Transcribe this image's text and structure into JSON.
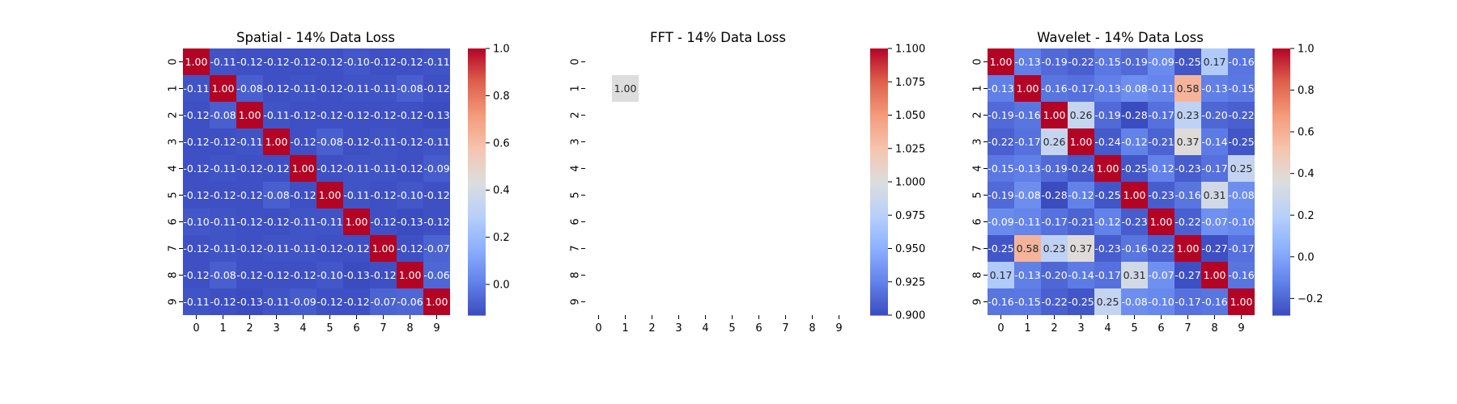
{
  "chart_data": [
    {
      "type": "heatmap",
      "title": "Spatial - 14% Data Loss",
      "x_tick_labels": [
        "0",
        "1",
        "2",
        "3",
        "4",
        "5",
        "6",
        "7",
        "8",
        "9"
      ],
      "y_tick_labels": [
        "0",
        "1",
        "2",
        "3",
        "4",
        "5",
        "6",
        "7",
        "8",
        "9"
      ],
      "colormap": "coolwarm",
      "vmin": -0.13,
      "vmax": 1.0,
      "colorbar_ticks": [
        0.0,
        0.2,
        0.4,
        0.6,
        0.8,
        1.0
      ],
      "colorbar_tick_labels": [
        "0.0",
        "0.2",
        "0.4",
        "0.6",
        "0.8",
        "1.0"
      ],
      "values": [
        [
          1.0,
          -0.11,
          -0.12,
          -0.12,
          -0.12,
          -0.12,
          -0.1,
          -0.12,
          -0.12,
          -0.11
        ],
        [
          -0.11,
          1.0,
          -0.08,
          -0.12,
          -0.11,
          -0.12,
          -0.11,
          -0.11,
          -0.08,
          -0.12
        ],
        [
          -0.12,
          -0.08,
          1.0,
          -0.11,
          -0.12,
          -0.12,
          -0.12,
          -0.12,
          -0.12,
          -0.13
        ],
        [
          -0.12,
          -0.12,
          -0.11,
          1.0,
          -0.12,
          -0.08,
          -0.12,
          -0.11,
          -0.12,
          -0.11
        ],
        [
          -0.12,
          -0.11,
          -0.12,
          -0.12,
          1.0,
          -0.12,
          -0.11,
          -0.11,
          -0.12,
          -0.09
        ],
        [
          -0.12,
          -0.12,
          -0.12,
          -0.08,
          -0.12,
          1.0,
          -0.11,
          -0.12,
          -0.1,
          -0.12
        ],
        [
          -0.1,
          -0.11,
          -0.12,
          -0.12,
          -0.11,
          -0.11,
          1.0,
          -0.12,
          -0.13,
          -0.12
        ],
        [
          -0.12,
          -0.11,
          -0.12,
          -0.11,
          -0.11,
          -0.12,
          -0.12,
          1.0,
          -0.12,
          -0.07
        ],
        [
          -0.12,
          -0.08,
          -0.12,
          -0.12,
          -0.12,
          -0.1,
          -0.13,
          -0.12,
          1.0,
          -0.06
        ],
        [
          -0.11,
          -0.12,
          -0.13,
          -0.11,
          -0.09,
          -0.12,
          -0.12,
          -0.07,
          -0.06,
          1.0
        ]
      ]
    },
    {
      "type": "heatmap",
      "title": "FFT - 14% Data Loss",
      "x_tick_labels": [
        "0",
        "1",
        "2",
        "3",
        "4",
        "5",
        "6",
        "7",
        "8",
        "9"
      ],
      "y_tick_labels": [
        "0",
        "1",
        "2",
        "3",
        "4",
        "5",
        "6",
        "7",
        "8",
        "9"
      ],
      "colormap": "coolwarm",
      "vmin": 0.9,
      "vmax": 1.1,
      "colorbar_ticks": [
        0.9,
        0.925,
        0.95,
        0.975,
        1.0,
        1.025,
        1.05,
        1.075,
        1.1
      ],
      "colorbar_tick_labels": [
        "0.900",
        "0.925",
        "0.950",
        "0.975",
        "1.000",
        "1.025",
        "1.050",
        "1.075",
        "1.100"
      ],
      "values": [
        [
          null,
          null,
          null,
          null,
          null,
          null,
          null,
          null,
          null,
          null
        ],
        [
          null,
          1.0,
          null,
          null,
          null,
          null,
          null,
          null,
          null,
          null
        ],
        [
          null,
          null,
          null,
          null,
          null,
          null,
          null,
          null,
          null,
          null
        ],
        [
          null,
          null,
          null,
          null,
          null,
          null,
          null,
          null,
          null,
          null
        ],
        [
          null,
          null,
          null,
          null,
          null,
          null,
          null,
          null,
          null,
          null
        ],
        [
          null,
          null,
          null,
          null,
          null,
          null,
          null,
          null,
          null,
          null
        ],
        [
          null,
          null,
          null,
          null,
          null,
          null,
          null,
          null,
          null,
          null
        ],
        [
          null,
          null,
          null,
          null,
          null,
          null,
          null,
          null,
          null,
          null
        ],
        [
          null,
          null,
          null,
          null,
          null,
          null,
          null,
          null,
          null,
          null
        ],
        [
          null,
          null,
          null,
          null,
          null,
          null,
          null,
          null,
          null,
          null
        ]
      ]
    },
    {
      "type": "heatmap",
      "title": "Wavelet - 14% Data Loss",
      "x_tick_labels": [
        "0",
        "1",
        "2",
        "3",
        "4",
        "5",
        "6",
        "7",
        "8",
        "9"
      ],
      "y_tick_labels": [
        "0",
        "1",
        "2",
        "3",
        "4",
        "5",
        "6",
        "7",
        "8",
        "9"
      ],
      "colormap": "coolwarm",
      "vmin": -0.28,
      "vmax": 1.0,
      "colorbar_ticks": [
        -0.2,
        0.0,
        0.2,
        0.4,
        0.6,
        0.8,
        1.0
      ],
      "colorbar_tick_labels": [
        "−0.2",
        "0.0",
        "0.2",
        "0.4",
        "0.6",
        "0.8",
        "1.0"
      ],
      "values": [
        [
          1.0,
          -0.13,
          -0.19,
          -0.22,
          -0.15,
          -0.19,
          -0.09,
          -0.25,
          0.17,
          -0.16
        ],
        [
          -0.13,
          1.0,
          -0.16,
          -0.17,
          -0.13,
          -0.08,
          -0.11,
          0.58,
          -0.13,
          -0.15
        ],
        [
          -0.19,
          -0.16,
          1.0,
          0.26,
          -0.19,
          -0.28,
          -0.17,
          0.23,
          -0.2,
          -0.22
        ],
        [
          -0.22,
          -0.17,
          0.26,
          1.0,
          -0.24,
          -0.12,
          -0.21,
          0.37,
          -0.14,
          -0.25
        ],
        [
          -0.15,
          -0.13,
          -0.19,
          -0.24,
          1.0,
          -0.25,
          -0.12,
          -0.23,
          -0.17,
          0.25
        ],
        [
          -0.19,
          -0.08,
          -0.28,
          -0.12,
          -0.25,
          1.0,
          -0.23,
          -0.16,
          0.31,
          -0.08
        ],
        [
          -0.09,
          -0.11,
          -0.17,
          -0.21,
          -0.12,
          -0.23,
          1.0,
          -0.22,
          -0.07,
          -0.1
        ],
        [
          -0.25,
          0.58,
          0.23,
          0.37,
          -0.23,
          -0.16,
          -0.22,
          1.0,
          -0.27,
          -0.17
        ],
        [
          0.17,
          -0.13,
          -0.2,
          -0.14,
          -0.17,
          0.31,
          -0.07,
          -0.27,
          1.0,
          -0.16
        ],
        [
          -0.16,
          -0.15,
          -0.22,
          -0.25,
          0.25,
          -0.08,
          -0.1,
          -0.17,
          -0.16,
          1.0
        ]
      ]
    }
  ]
}
